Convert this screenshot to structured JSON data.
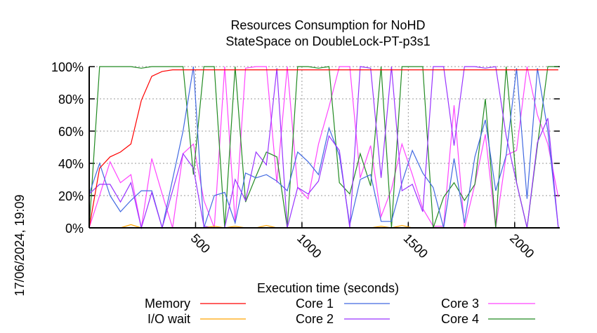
{
  "chart_data": {
    "type": "line",
    "title": [
      "Resources Consumption for NoHD",
      "StateSpace on DoubleLock-PT-p3s1"
    ],
    "xlabel": "Execution time (seconds)",
    "ylabel": "",
    "timestamp": "17/06/2024, 19:09",
    "xlim": [
      0,
      2212
    ],
    "ylim": [
      0,
      100
    ],
    "xticks": [
      500,
      1000,
      1500,
      2000
    ],
    "xtick_labels": [
      "500",
      "1000",
      "1500",
      "2000"
    ],
    "yticks": [
      0,
      20,
      40,
      60,
      80,
      100
    ],
    "ytick_labels": [
      "0%",
      "20%",
      "40%",
      "60%",
      "80%",
      "100%"
    ],
    "grid": true,
    "legend_placement": "bottom",
    "x_step": 49,
    "series": [
      {
        "name": "Memory",
        "color": "#ff0000",
        "values": [
          0,
          37,
          44,
          47,
          52,
          79,
          94,
          97,
          98,
          98,
          98,
          98,
          98,
          98,
          98,
          98,
          98,
          98,
          98,
          98,
          98,
          98,
          98,
          98,
          98,
          98,
          98,
          98,
          98,
          98,
          98,
          98,
          98,
          98,
          98,
          98,
          98,
          98,
          98,
          98,
          98,
          98,
          98,
          98,
          98,
          98
        ]
      },
      {
        "name": "I/O wait",
        "color": "#ffa500",
        "values": [
          0,
          0,
          0,
          0,
          2,
          0,
          0,
          0,
          0,
          0,
          0,
          0,
          1,
          0,
          1,
          0,
          0,
          1.5,
          0,
          0,
          0,
          0,
          0,
          0,
          0,
          0,
          0,
          0,
          1,
          0,
          1.5,
          0,
          0,
          0,
          0,
          0,
          0,
          0,
          0,
          0,
          0,
          0,
          0,
          0,
          0,
          0
        ]
      },
      {
        "name": "Core 1",
        "color": "#4169e1",
        "values": [
          21,
          40,
          20,
          10,
          17,
          23,
          23,
          0,
          30,
          60,
          100,
          0,
          20,
          22,
          3,
          34,
          31,
          33,
          29,
          23,
          47,
          41,
          33,
          62,
          45,
          2,
          30,
          33,
          4,
          4,
          28,
          48,
          34,
          25,
          0,
          43,
          3,
          44,
          67,
          23,
          45,
          99,
          18,
          99,
          60,
          0
        ]
      },
      {
        "name": "Core 2",
        "color": "#9933ff",
        "values": [
          21,
          27,
          27,
          16,
          28,
          0,
          22,
          0,
          23,
          46,
          37,
          1,
          0,
          0,
          30,
          17,
          47,
          39,
          99,
          0,
          25,
          21,
          29,
          57,
          48,
          0,
          100,
          99,
          31,
          100,
          23,
          27,
          10,
          100,
          100,
          51,
          100,
          100,
          99,
          100,
          57,
          28,
          0,
          53,
          68,
          0
        ]
      },
      {
        "name": "Core 3",
        "color": "#ff44ff",
        "values": [
          0,
          20,
          41,
          28,
          33,
          0,
          43,
          21,
          0,
          46,
          52,
          17,
          0,
          100,
          3,
          99,
          100,
          100,
          28,
          100,
          25,
          18,
          52,
          75,
          100,
          100,
          31,
          51,
          7,
          24,
          52,
          33,
          12,
          1,
          1,
          76,
          0,
          27,
          58,
          0,
          45,
          48,
          100,
          70,
          52,
          19
        ]
      },
      {
        "name": "Core 4",
        "color": "#228b22",
        "values": [
          0,
          100,
          100,
          100,
          100,
          99,
          100,
          100,
          100,
          100,
          33,
          100,
          100,
          0,
          100,
          16,
          32,
          47,
          44,
          0,
          100,
          100,
          99,
          100,
          28,
          21,
          46,
          26,
          100,
          0,
          100,
          100,
          100,
          0,
          19,
          28,
          17,
          27,
          80,
          0,
          100,
          28,
          0,
          51,
          100,
          100
        ]
      }
    ]
  }
}
